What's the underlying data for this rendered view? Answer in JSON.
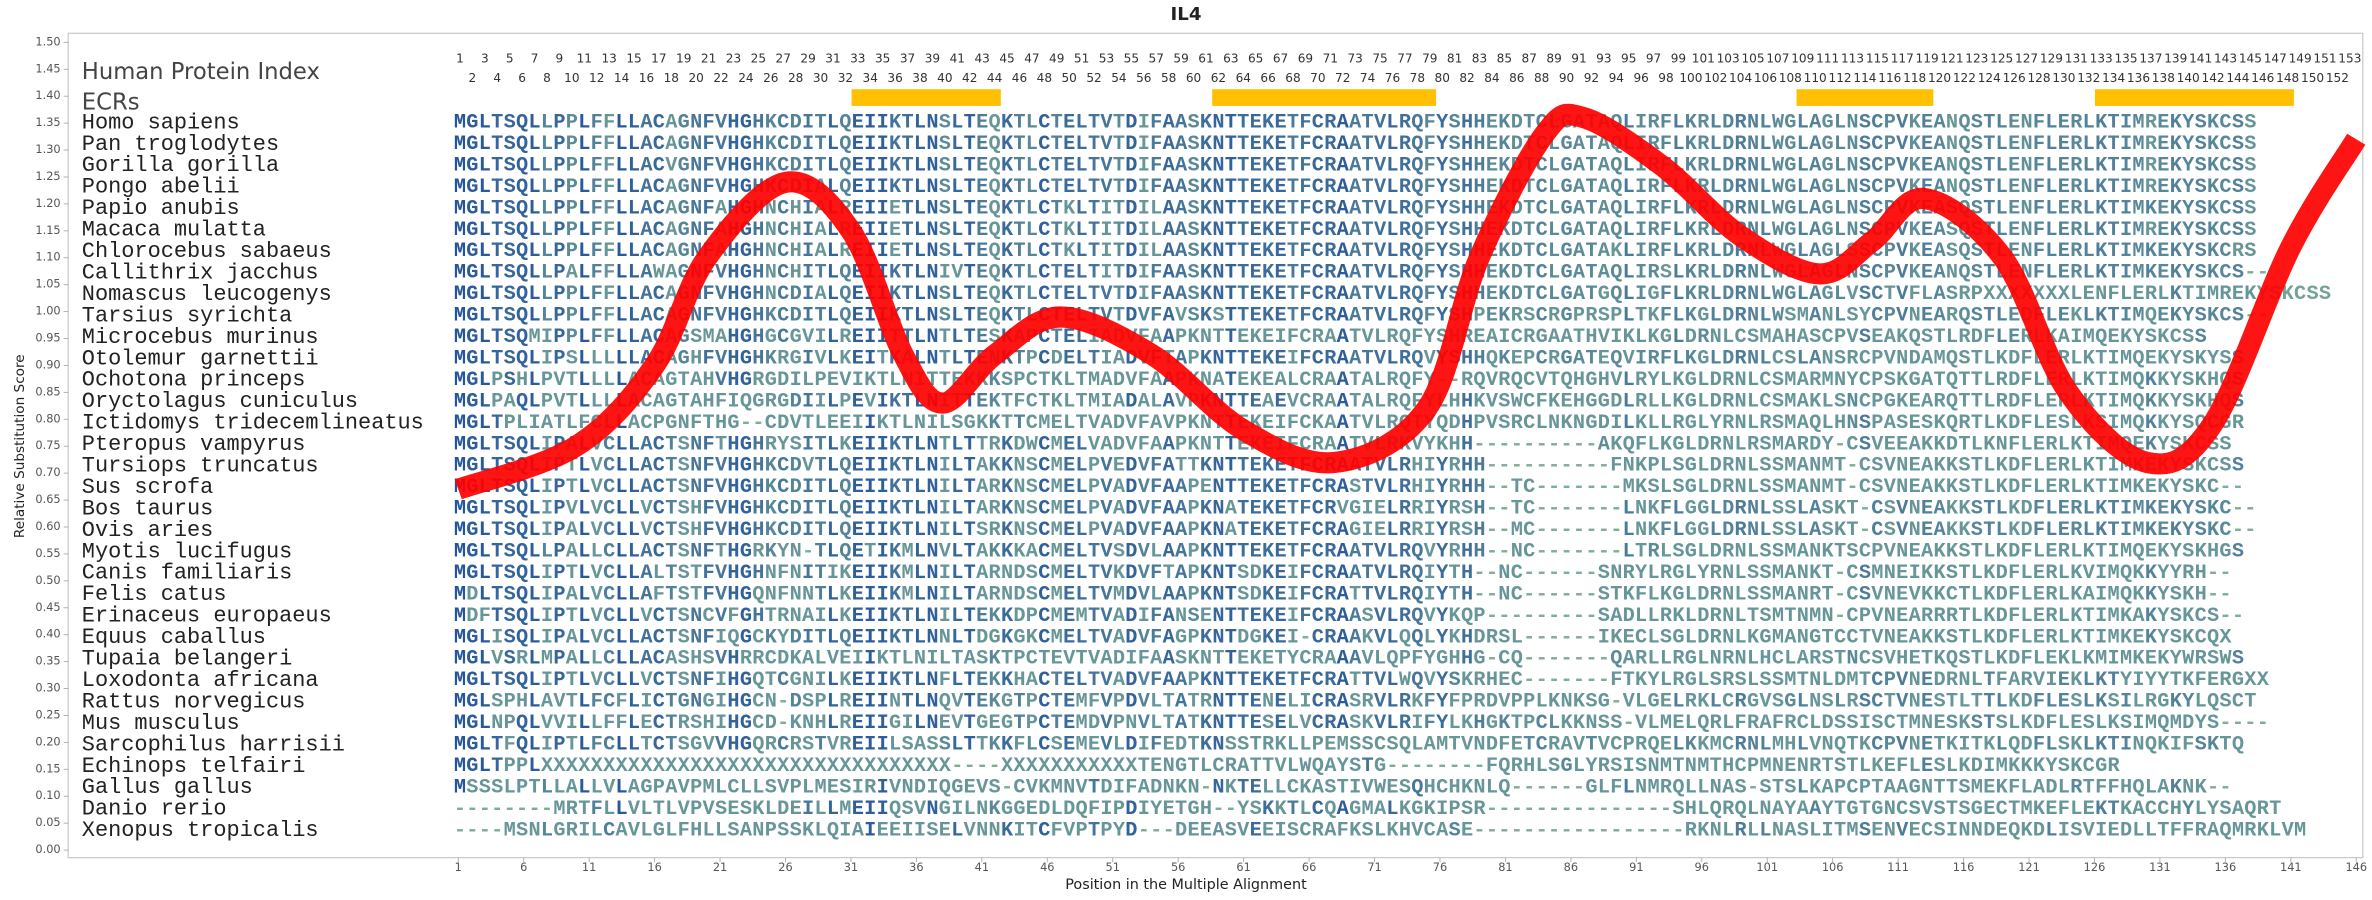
{
  "chart_data": {
    "type": "line",
    "title": "IL4",
    "x_label": "Position in the Multiple Alignment",
    "y_label": "Relative Substitution Score",
    "protein_index_label": "Human Protein Index",
    "ecr_label": "ECRs",
    "xlim": [
      -28.8,
      146.5
    ],
    "ylim": [
      0,
      1.5
    ],
    "xticks": [
      1,
      6,
      11,
      16,
      21,
      26,
      31,
      36,
      41,
      46,
      51,
      56,
      61,
      66,
      71,
      76,
      81,
      86,
      91,
      96,
      101,
      106,
      111,
      116,
      121,
      126,
      131,
      136,
      141,
      146
    ],
    "yticks": [
      {
        "value": 0,
        "label": "0.00"
      },
      {
        "value": 0.05,
        "label": "0.05"
      },
      {
        "value": 0.1,
        "label": "0.10"
      },
      {
        "value": 0.15,
        "label": "0.15"
      },
      {
        "value": 0.2,
        "label": "0.20"
      },
      {
        "value": 0.25,
        "label": "0.25"
      },
      {
        "value": 0.3,
        "label": "0.30"
      },
      {
        "value": 0.35,
        "label": "0.35"
      },
      {
        "value": 0.4,
        "label": "0.40"
      },
      {
        "value": 0.45,
        "label": "0.45"
      },
      {
        "value": 0.5,
        "label": "0.50"
      },
      {
        "value": 0.55,
        "label": "0.55"
      },
      {
        "value": 0.6,
        "label": "0.60"
      },
      {
        "value": 0.65,
        "label": "0.65"
      },
      {
        "value": 0.7,
        "label": "0.70"
      },
      {
        "value": 0.75,
        "label": "0.75"
      },
      {
        "value": 0.8,
        "label": "0.80"
      },
      {
        "value": 0.85,
        "label": "0.85"
      },
      {
        "value": 0.9,
        "label": "0.90"
      },
      {
        "value": 0.95,
        "label": "0.95"
      },
      {
        "value": 1,
        "label": "1.00"
      },
      {
        "value": 1.05,
        "label": "1.05"
      },
      {
        "value": 1.1,
        "label": "1.10"
      },
      {
        "value": 1.15,
        "label": "1.15"
      },
      {
        "value": 1.2,
        "label": "1.20"
      },
      {
        "value": 1.25,
        "label": "1.25"
      },
      {
        "value": 1.3,
        "label": "1.30"
      },
      {
        "value": 1.35,
        "label": "1.35"
      },
      {
        "value": 1.4,
        "label": "1.40"
      },
      {
        "value": 1.45,
        "label": "1.45"
      },
      {
        "value": 1.5,
        "label": "1.50"
      }
    ],
    "x": [
      1,
      10,
      16,
      20,
      26,
      31,
      35,
      38,
      42,
      47,
      54,
      61,
      68,
      75,
      79,
      84,
      87,
      93,
      99,
      105,
      109,
      113,
      119,
      124,
      130,
      135,
      141,
      146
    ],
    "series": [
      {
        "color": "#ff0000",
        "values": [
          0.67,
          0.75,
          0.9,
          1.1,
          1.24,
          1.15,
          0.92,
          0.83,
          0.92,
          0.99,
          0.92,
          0.78,
          0.72,
          0.82,
          1.1,
          1.33,
          1.36,
          1.27,
          1.14,
          1.07,
          1.13,
          1.21,
          1.1,
          0.85,
          0.72,
          0.79,
          1.12,
          1.32
        ]
      }
    ],
    "human_index": [
      1,
      2,
      3,
      4,
      5,
      6,
      7,
      8,
      9,
      10,
      11,
      12,
      13,
      14,
      15,
      16,
      17,
      18,
      19,
      20,
      21,
      22,
      23,
      24,
      25,
      26,
      27,
      28,
      29,
      30,
      31,
      32,
      33,
      34,
      35,
      36,
      37,
      38,
      39,
      40,
      41,
      42,
      43,
      44,
      45,
      46,
      47,
      48,
      49,
      50,
      51,
      52,
      53,
      54,
      55,
      56,
      57,
      58,
      59,
      60,
      61,
      62,
      63,
      64,
      65,
      66,
      67,
      68,
      69,
      70,
      71,
      72,
      73,
      74,
      75,
      76,
      77,
      78,
      79,
      80,
      81,
      82,
      83,
      84,
      85,
      86,
      87,
      88,
      89,
      90,
      91,
      92,
      93,
      94,
      95,
      96,
      97,
      98,
      99,
      100,
      101,
      102,
      103,
      104,
      105,
      106,
      107,
      108,
      109,
      110,
      111,
      112,
      113,
      114,
      115,
      116,
      117,
      118,
      119,
      120,
      121,
      122,
      123,
      124,
      125,
      126,
      127,
      128,
      129,
      130,
      131,
      132,
      133,
      134,
      135,
      136,
      137,
      138,
      139,
      140,
      141,
      142,
      143,
      144,
      145,
      146,
      147,
      148,
      149,
      150,
      151,
      152,
      153
    ],
    "ecrs": [
      [
        33,
        44
      ],
      [
        62,
        79
      ],
      [
        109,
        119
      ],
      [
        133,
        148
      ]
    ],
    "ecr_color": "#ffc000",
    "conserved_color": "#1f4f9c",
    "variable_color": "#7fae96",
    "alignment": {
      "species": [
        "Homo sapiens",
        "Pan troglodytes",
        "Gorilla gorilla",
        "Pongo abelii",
        "Papio anubis",
        "Macaca mulatta",
        "Chlorocebus sabaeus",
        "Callithrix jacchus",
        "Nomascus leucogenys",
        "Tarsius syrichta",
        "Microcebus murinus",
        "Otolemur garnettii",
        "Ochotona princeps",
        "Oryctolagus cuniculus",
        "Ictidomys tridecemlineatus",
        "Pteropus vampyrus",
        "Tursiops truncatus",
        "Sus scrofa",
        "Bos taurus",
        "Ovis aries",
        "Myotis lucifugus",
        "Canis familiaris",
        "Felis catus",
        "Erinaceus europaeus",
        "Equus caballus",
        "Tupaia belangeri",
        "Loxodonta africana",
        "Rattus norvegicus",
        "Mus musculus",
        "Sarcophilus harrisii",
        "Echinops telfairi",
        "Gallus gallus",
        "Danio rerio",
        "Xenopus tropicalis"
      ],
      "sequences": [
        "MGLTSQLLPPLFFLLACAGNFVHGHKCDITLQEIIKTLNSLTEQKTLCTELTVTDIFAASKNTTEKETFCRAATVLRQFYSHHEKDTCLGATAQLIRFLKRLDRNLWGLAGLNSCPVKEANQSTLENFLERLKTIMREKYSKCSS",
        "MGLTSQLLPPLFFLLACAGNFVHGHKCDITLQEIIKTLNSLTEQKTLCTELTVTDIFAASKNTTEKETFCRAATVLRQFYSHHEKDTCLGATAQLIRFLKRLDRNLWGLAGLNSCPVKEANQSTLENFLERLKTIMREKYSKCSS",
        "MGLTSQLLPPLFFLLACVGNFVHGHKCDITLQEIIKTLNSLTEQKTLCTELTVTDIFAASKNTTEKETFCRAATVLRQFYSHHEKDTCLGATAQLIRFLKRLDRNLWGLAGLNSCPVKEANQSTLENFLERLKTIMREKYSKCSS",
        "MGLTSQLLPPLFFLLACAGNFVHGHKCDIALQEIIKTLNSLTEQKTLCTELTVTDIFAASKNTTEKETFCRAATVLRQFYSHHEKDTCLGATAQLIRFLKRLDRNLWGLAGLNSCPVKEANQSTLENFLERLKTIMREKYSKCSS",
        "MGLTSQLLPPLFFLLACAGNFAHGHNCHIALREIIETLNSLTEQKTLCTKLTITDILAASKNTTEKETFCRAATVLRQFYSHHEKDTCLGATAQLIRFLKRLDRNLWGLAGLNSCPVKEASQSTLENFLERLKTIMKEKYSKCSS",
        "MGLTSQLLPPLFFLLACAGNFAHGHNCHIALREIIETLNSLTEQKTLCTKLTITDILAASKNTTEKETFCRAATVLRQFYSHHEKDTCLGATAQLIRFLKRLDRNLWGLAGLNSCPVKEASQSTLENFLERLKTIMREKYSKCSS",
        "MGLTSQLLPPLFFLLACAGNFAHGHNCHIALREIIETLNSLTEQKTLCTKLTITDILAASKNTTEKETFCRAATVLRQFYSHHEKDTCLGATAKLIRFLKRLDRNLWGLAGLSSCPVKEASQSTLENFLERLKTIMKEKYSKCRS",
        "MGLTSQLLPALFFLLAWAGNFVHGHNCHITLQEIIKTLNIVTEQKTLCTELTITDIFAASKNTTEKETFCRAATVLRQFYSHHEKDTCLGATAQLIRSLKRLDRNLWGLAGLNSCPVKEANQSTLENFLERLKTIMKEKYSKCS--",
        "MGLTSQLLPPLFFLLACAGNFVHGHNCDIALQEIIKTLNSLTEQKTLCTELTVTDIFAASKNTTEKETFCRAATVLRQFYSHHEKDTCLGATGQLIGFLKRLDRNLWGLAGLVSCTVFLASRPXXXXXXXLENFLERLKTIMREKYSKCSS",
        "MGLTSQLLPPLFFLLACAGNFVHGHKCDITLQEIIKTLNSLTEQKTLCTELTVTDVFAVSKSTTEKETFCRAATVLRQFYSHPEKRSCRGPRSPLTKFLKGLDRNLWSMANLSYCPVNEARQSTLEDFLEKLKTIMQEKYSKCS--",
        "MGLTSQMIPPLFFLLACAGSMAHGHGCGVILREIITTLNTLTESKAPCTELIADVFAAPKNTTEKEIFCRAATVLRQFYSHREAICRGAATHVIKLKGLDRNLCSMAHASCPVSEAKQSTLRDFLERLKAIMQEKYSKCSS",
        "MGLTSQLIPSLLLLLACAGHFVHGHKRGIVLKEITKALNTLTENKTPCDELTIADVFTAPKNTTEKEIFCRAATVLRQVYSHHQKEPCRGATEQVIRFLKGLDRNLCSLANSRCPVNDAMQSTLKDFLERLKTIMQEKYSKYSS",
        "MGLPSHLPVTLLLLACAGTAHVHGRGDILPEVIKTLNITTEKKKSPCTKLTMADVFAAPKNATEKEALCRAATALRQFY--RQVRQCVTQHGHVLRYLKGLDRNLCSMARMNYCPSKGATQTTLRDFLERLKTIMQKKYSKHQS",
        "MGLPAQLPVTLLLLACAGTAHFIQGRGDIILPEVIKTLNITTEKTFCTKLTMIADALAVPKNTTEAEVCRAATALRQFYLHHKVSWCFKEHGGDLRLLKGLDRNLCSMAKLSNCPGKEARQTTLRDFLERLKTIMQKKYSKHQS",
        "MGLTPLIATLFCLLACPGNFTHG--CDVTLEEIIKTLNILSGKKTTCMELTVADVFAVPKNTTEKEIFCKAATVLRQTYQDHPVSRCLNKNGDILKLLRGLYRNLRSMAQLHNSPASESKQRTLKDFLESLKSIMQKKYSQCGR",
        "MGLTSQLIPALVCLLACTSNFTHGHRYSITLKEIIKTLNTLTTRKDWCMELVADVFAAPKNTTEKEIFCRAATVLRKVYKHH----------AKQFLKGLDRNLRSMARDY-CSVEEAKKDTLKNFLERLKTIMQEKYSKCSS",
        "MGLTSQLIPTLVCLLACTSNFVHGHKCDVTLQEIIKTLNILTAKKNSCMELPVEDVFATTKNTTEKETFCRAATVLRHIYRHH----------FNKPLSGLDRNLSSMANMT-CSVNEAKKSTLKDFLERLKTIMKEKYSKCSS",
        "MGLTSQLIPTLVCLLACTSNFVHGHKCDITLQEIIKTLNILTARKNSCMELPVADVFAAPENTTEKETFCRASTVLRHIYRHH--TC-------MKSLSGLDRNLSSMANMT-CSVNEAKKSTLKDFLERLKTIMKEKYSKC--",
        "MGLTSQLIPVLVCLLVCTSHFVHGHKCDITLQEIIKTLNILTARKNSCMELPVADVFAAPKNATEKETFCRVGIELRRIYRSH--TC-------LNKFLGGLDRNLSSLASKT-CSVNEAKKSTLKDFLERLKTIMKEKYSKC--",
        "MGLTSQLIPALVCLLVCTSHFVHGHKCDITLQEIIKTLNILTSRKNSCMELPVADVFAAPKNATEKETFCRAGIELRRIYRSH--MC-------LNKFLGGLDRNLSSLASKT-CSVNEAKKSTLKDFLERLKTIMKEKYSKC--",
        "MGLTSQLLPALLCLLACTSNFTHGRKYN-TLQETIKMLNVLTAKKKACMELTVSDVLAAPKNTTEKETFCRAATVLRQVYRHH--NC-------LTRLSGLDRNLSSMANKTSCPVNEAKKSTLKDFLERLKTIMQEKYSKHGS",
        "MGLTSQLIPTLVCLLALTSTFVHGHNFNITIKEIIKMLNILTARNDSCMELTVKDVFTAPKNTSDKEIFCRAATVLRQIYTH--NC------SNRYLRGLYRNLSSMANKT-CSMNEIKKSTLKDFLERLKVIMQKKYYRH--",
        "MDLTSQLIPALVCLLAFTSTFVHGQNFNNTLKEIIKMLNILTARNDSCMELTVMDVLAAPKNTSDKEIFCRATTVLRQIYTH--NC------STKFLKGLDRNLSSMANRT-CSVNEVKKCTLKDFLERLKAIMQKKYSKH--",
        "MDFTSQLIPTLVCLLVCTSNCVFGHTRNAILKEIIKTLNILTEKKDPCMEMTVADIFANSENTTEKEIFCRAASVLRQVYKQP---------SADLLRKLDRNLTSMTNMN-CPVNEARRRTLKDFLERLKTIMKAKYSKCS--",
        "MGLISQLIPALVCLLACTSNFIQGCKYDITLQEIIKTLNNLTDGKGKCMELTVADVFAGPKNTDGKEI-CRAAKVLQQLYKHDRSL------IKECLSGLDRNLKGMANGTCCTVNEAKKSTLKDFLERLKTIMKEKYSKCQX",
        "MGLVSRLMPALLCLLACASHSVHRRCDKALVEIIKTLNILTASKTPCTEVTVADIFAASKNTTEKETYCRAAAVLQPFYGHHG-CQ-------QARLLRGLNRNLHCLARSTNCSVHETKQSTLKDFLEKLKMIMKEKYWRSWS",
        "MGLTSQLIPTLVCLLVCTSNFIHGQTCGNILKEIIKTLNFLTEKKHACTELTVADVFAAPKNTTEKETFCRATTVLWQVYSKRHEC-------FTKYLRGLSRSLSSMTNLDMTCPVNEDRNLTFARVIEKLKTYIYYTKFERGXX",
        "MGLSPHLAVTLFCFLICTGNGIHGCN-DSPLREIINTLNQVTEKGTPCTEMFVPDVLTATRNTTENELICRASRVLRKFYFPRDVPPLKNKSG-VLGELRKLCRGVSGLNSLRSCTVNESTLTTLKDFLESLKSILRGKYLQSCT",
        "MGLNPQLVVILLFFLECTRSHIHGCD-KNHLREIIGILNEVTGEGTPCTEMDVPNVLTATKNTTESELVCRASKVLRIFYLKHGKTPCLKKNSS-VLMELQRLFRAFRCLDSSISCTMNESKSTSLKDFLESLKSIMQMDYS----",
        "MGLTFQLIPTLFCLLTCTSGVVHGQRCRSTVREIILSASSLTTKKFLCSEMEVLDIFEDTKNSSTRKLLPEMSSCSQLAMTVNDFETCRAVTVCPRQELKKMCRNLMHLVNQTKCPVNETKITKLQDFLSKLKTINQKIFSKTQ",
        "MGLTPPLXXXXXXXXXXXXXXXXXXXXXXXXXXXXXXXXX----XXXXXXXXXXXTENGTLCRATTVLWQAYSTG--------FQRHLSGLYRSISNMTNMTHCPMNENRTSTLKEFLESLKDIMKKKYSKCGR",
        "MSSSLPTLLALLVLAGPAVPMLCLLSVPLMESIRIVNDIQGEVS-CVKMNVTDIFADNKN-NKTELLCKASTIVWESQHCHKNLQ------GLFLNMRQLLNAS-STSLKAPCPTAAGNTTSMEKFLADLRTFFHQLAKNK--",
        "--------MRTFLLVLTLVPVSESKLDEILLMEIIQSVNGILNKGGEDLDQFIPDIYETGH--YSKKTLCQAGMALKGKIPSR---------------SHLQRQLNAYAAYTGTGNCSVSTSGECTMKEFLEKTKACCHYLYSAQRT",
        "----MSNLGRILCAVLGLFHLLSANPSSKLQIAIEEIISELVNNKITCFVPTPYD---DEEASVEEISCRAFKSLKHVCASE-----------------RKNLRLLNASLITMSENVECSINNDEQKDLISVIEDLLTFFRAQMRKLVM"
      ]
    }
  }
}
